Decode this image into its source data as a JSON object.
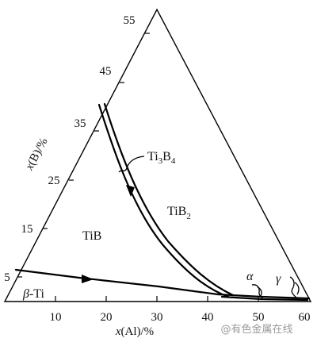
{
  "figure": {
    "x_axis_title_prefix": "x",
    "x_axis_title_suffix": "(Al)/%",
    "y_axis_title_prefix": "x",
    "y_axis_title_suffix": "(B)/%",
    "x_ticks": [
      "10",
      "20",
      "30",
      "40",
      "50",
      "60"
    ],
    "y_ticks": [
      "5",
      "15",
      "25",
      "35",
      "45",
      "55"
    ],
    "phases": {
      "ti3b4_main": "Ti",
      "ti3b4_sub1": "3",
      "ti3b4_mid": "B",
      "ti3b4_sub2": "4",
      "tib2_main": "TiB",
      "tib2_sub": "2",
      "tib": "TiB",
      "beta_symbol": "β",
      "beta_suffix": "-Ti",
      "alpha": "α",
      "gamma": "γ"
    },
    "watermark": "@有色金属在线"
  }
}
